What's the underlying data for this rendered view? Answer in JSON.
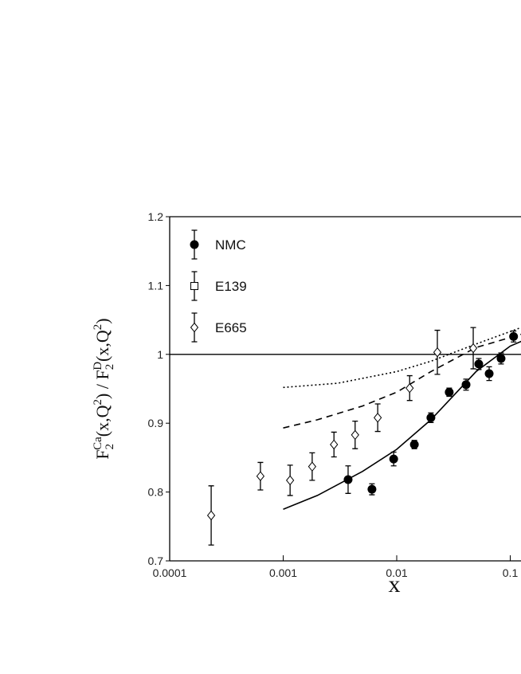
{
  "chart_data": {
    "type": "scatter",
    "xlabel": "x",
    "ylabel": [
      {
        "text": "F"
      },
      {
        "text": "2",
        "style": "sub"
      },
      {
        "text": "Ca",
        "style": "sup"
      },
      {
        "text": "(x,Q"
      },
      {
        "text": "2",
        "style": "sup"
      },
      {
        "text": ") / F"
      },
      {
        "text": "2",
        "style": "sub"
      },
      {
        "text": "D",
        "style": "sup"
      },
      {
        "text": "(x,Q"
      },
      {
        "text": "2",
        "style": "sup"
      },
      {
        "text": ")"
      }
    ],
    "xlog": true,
    "xlim": [
      0.0001,
      1
    ],
    "xticks": [
      0.0001,
      0.001,
      0.01,
      0.1
    ],
    "ylim": [
      0.7,
      1.2
    ],
    "yticks": [
      0.7,
      0.8,
      0.9,
      1,
      1.1,
      1.2
    ],
    "reference_line": 1,
    "legend": "upper left",
    "series": [
      {
        "name": "NMC",
        "marker": "filled-circle",
        "color": "#000000",
        "x": [
          0.00373,
          0.00605,
          0.0094,
          0.0143,
          0.02,
          0.029,
          0.0408,
          0.0528,
          0.0652,
          0.083,
          0.107
        ],
        "values": [
          0.818,
          0.804,
          0.848,
          0.869,
          0.908,
          0.945,
          0.956,
          0.986,
          0.972,
          0.994,
          1.026
        ],
        "errors": [
          0.02,
          0.008,
          0.01,
          0.006,
          0.007,
          0.006,
          0.008,
          0.008,
          0.01,
          0.008,
          0.008
        ]
      },
      {
        "name": "E139",
        "marker": "open-square",
        "color": "#000000",
        "x": [],
        "values": [],
        "errors": []
      },
      {
        "name": "E665",
        "marker": "open-diamond",
        "color": "#000000",
        "x": [
          0.000232,
          0.00063,
          0.00115,
          0.0018,
          0.0028,
          0.0043,
          0.0068,
          0.013,
          0.0228,
          0.0472
        ],
        "values": [
          0.766,
          0.823,
          0.817,
          0.837,
          0.869,
          0.883,
          0.908,
          0.951,
          1.003,
          1.009
        ],
        "errors": [
          0.043,
          0.02,
          0.022,
          0.02,
          0.018,
          0.02,
          0.02,
          0.018,
          0.032,
          0.03
        ]
      }
    ],
    "curves": [
      {
        "style": "solid",
        "color": "#000000",
        "x": [
          0.001,
          0.002,
          0.005,
          0.01,
          0.02,
          0.05,
          0.1,
          0.13
        ],
        "values": [
          0.775,
          0.795,
          0.83,
          0.862,
          0.905,
          0.975,
          1.012,
          1.02
        ]
      },
      {
        "style": "dashed",
        "color": "#000000",
        "x": [
          0.001,
          0.002,
          0.005,
          0.01,
          0.02,
          0.05,
          0.13
        ],
        "values": [
          0.893,
          0.905,
          0.925,
          0.945,
          0.975,
          1.01,
          1.03
        ]
      },
      {
        "style": "dotted",
        "color": "#000000",
        "x": [
          0.001,
          0.003,
          0.01,
          0.02,
          0.05,
          0.13
        ],
        "values": [
          0.952,
          0.958,
          0.975,
          0.99,
          1.015,
          1.04
        ]
      }
    ]
  }
}
